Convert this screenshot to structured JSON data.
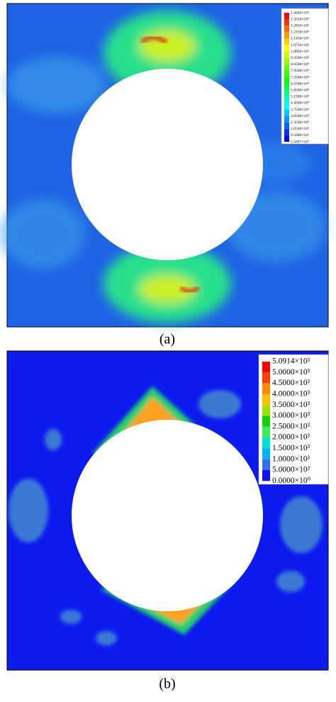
{
  "panels": [
    {
      "caption": "(a)",
      "legend": {
        "labels": [
          "1.4204×10⁵",
          "1.3550×10⁵",
          "1.2850×10⁵",
          "1.2150×10⁵",
          "1.1450×10⁵",
          "1.0750×10⁵",
          "1.0050×10⁵",
          "9.3500×10⁴",
          "8.6500×10⁴",
          "7.9500×10⁴",
          "7.2500×10⁴",
          "6.5500×10⁴",
          "5.8500×10⁴",
          "5.1500×10⁴",
          "4.4500×10⁴",
          "3.7500×10⁴",
          "3.0500×10⁴",
          "2.3500×10⁴",
          "1.6500×10⁴",
          "9.5000×10³",
          "5.5697×10³"
        ],
        "colors": [
          "#ff0000",
          "#ff3300",
          "#ff6600",
          "#ff9900",
          "#ffcc00",
          "#ffff00",
          "#ccff00",
          "#99ff00",
          "#66ff00",
          "#33ff00",
          "#00ff00",
          "#00ff44",
          "#00ff88",
          "#00ffcc",
          "#00ffff",
          "#00ccff",
          "#0099ff",
          "#0066ff",
          "#0033ff",
          "#0000ff"
        ]
      }
    },
    {
      "caption": "(b)",
      "legend": {
        "labels": [
          "5.0914×10³",
          "5.0000×10³",
          "4.5000×10³",
          "4.0000×10³",
          "3.5000×10³",
          "3.0000×10³",
          "2.5000×10³",
          "2.0000×10³",
          "1.5000×10³",
          "1.0000×10³",
          "5.0000×10²",
          "0.0000×10⁰"
        ],
        "colors": [
          "#ff0000",
          "#ff4000",
          "#ff8c00",
          "#ffc000",
          "#a0e000",
          "#10d000",
          "#40e860",
          "#00e0d0",
          "#00b0ff",
          "#3070f0",
          "#1010f0"
        ]
      }
    }
  ]
}
